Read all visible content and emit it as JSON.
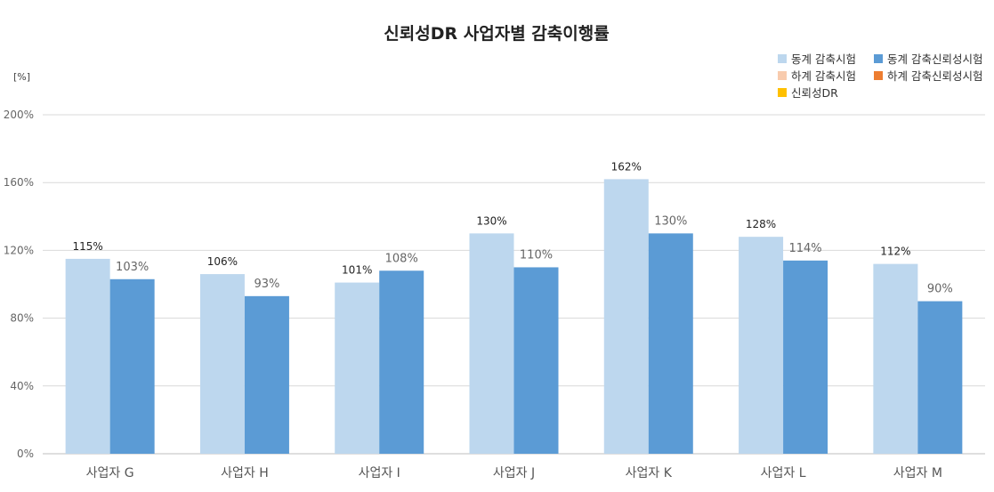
{
  "chart_data": {
    "type": "bar",
    "title": "신뢰성DR 사업자별 감축이행률",
    "unit_label": "[%]",
    "categories": [
      "사업자 G",
      "사업자 H",
      "사업자 I",
      "사업자 J",
      "사업자 K",
      "사업자 L",
      "사업자 M"
    ],
    "ylim": [
      0,
      200
    ],
    "yticks": [
      0,
      40,
      80,
      120,
      160,
      200
    ],
    "ytick_labels": [
      "0%",
      "40%",
      "80%",
      "120%",
      "160%",
      "200%"
    ],
    "grid": true,
    "legend_placement": "top-right",
    "legend": [
      {
        "name": "동계 감축시험",
        "color": "#bdd7ee"
      },
      {
        "name": "동계 감축신뢰성시험",
        "color": "#5b9bd5"
      },
      {
        "name": "하계 감축시험",
        "color": "#f8cbad"
      },
      {
        "name": "하계 감축신뢰성시험",
        "color": "#ed7d31"
      },
      {
        "name": "신뢰성DR",
        "color": "#ffc000"
      }
    ],
    "series": [
      {
        "name": "동계 감축시험",
        "color": "#bdd7ee",
        "values": [
          115,
          106,
          101,
          130,
          162,
          128,
          112
        ],
        "labels": [
          "115%",
          "106%",
          "101%",
          "130%",
          "162%",
          "128%",
          "112%"
        ]
      },
      {
        "name": "동계 감축신뢰성시험",
        "color": "#5b9bd5",
        "values": [
          103,
          93,
          108,
          110,
          130,
          114,
          90
        ],
        "labels": [
          "103%",
          "93%",
          "108%",
          "110%",
          "130%",
          "114%",
          "90%"
        ]
      }
    ]
  }
}
